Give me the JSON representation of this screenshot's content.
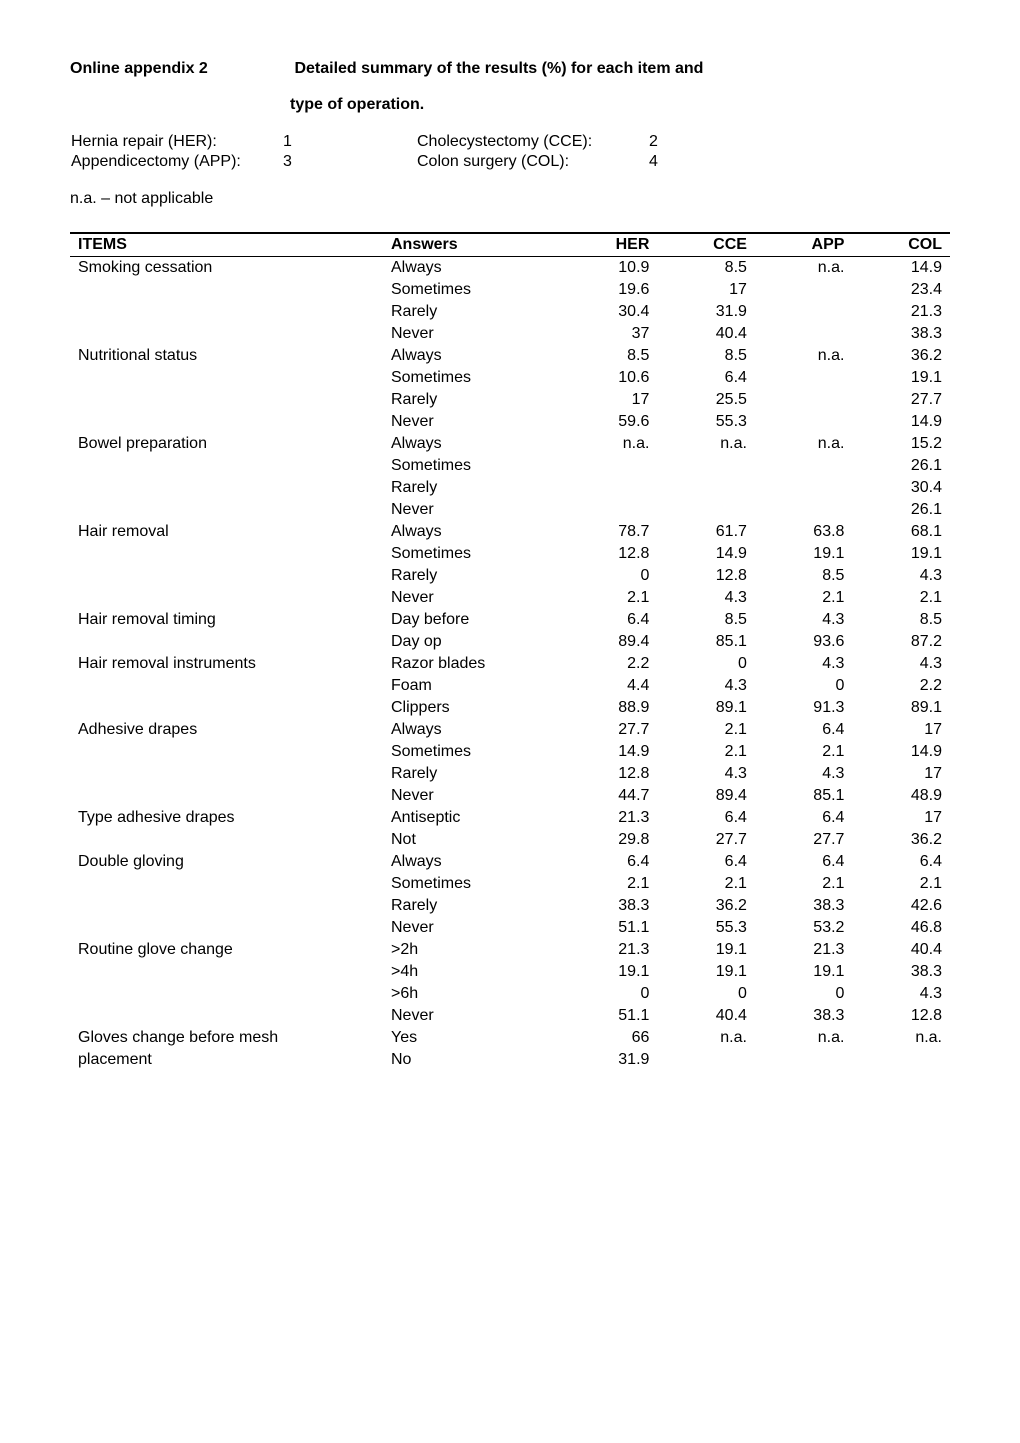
{
  "header": {
    "appendix_label": "Online appendix 2",
    "appendix_desc": "Detailed summary of the results (%) for each item and",
    "appendix_desc_line2": "type of operation."
  },
  "legend": {
    "rows": [
      {
        "label": "Hernia repair (HER):",
        "num": "1",
        "label2": "Cholecystectomy (CCE):",
        "num2": "2"
      },
      {
        "label": "Appendicectomy (APP):",
        "num": "3",
        "label2": "Colon surgery (COL):",
        "num2": "4"
      }
    ],
    "na": "n.a. – not applicable"
  },
  "table": {
    "columns": [
      "ITEMS",
      "Answers",
      "HER",
      "CCE",
      "APP",
      "COL"
    ],
    "col_align": [
      "left",
      "left",
      "right",
      "right",
      "right",
      "right"
    ],
    "header_bg": "#ffffff",
    "border_color": "#000000",
    "font_size": 16,
    "rows": [
      {
        "item": "Smoking cessation",
        "answers": [
          {
            "a": "Always",
            "v": [
              "10.9",
              "8.5",
              "n.a.",
              "14.9"
            ]
          },
          {
            "a": "Sometimes",
            "v": [
              "19.6",
              "17",
              "",
              "23.4"
            ]
          },
          {
            "a": "Rarely",
            "v": [
              "30.4",
              "31.9",
              "",
              "21.3"
            ]
          },
          {
            "a": "Never",
            "v": [
              "37",
              "40.4",
              "",
              "38.3"
            ]
          }
        ]
      },
      {
        "item": "Nutritional status",
        "answers": [
          {
            "a": "Always",
            "v": [
              "8.5",
              "8.5",
              "n.a.",
              "36.2"
            ]
          },
          {
            "a": "Sometimes",
            "v": [
              "10.6",
              "6.4",
              "",
              "19.1"
            ]
          },
          {
            "a": "Rarely",
            "v": [
              "17",
              "25.5",
              "",
              "27.7"
            ]
          },
          {
            "a": "Never",
            "v": [
              "59.6",
              "55.3",
              "",
              "14.9"
            ]
          }
        ]
      },
      {
        "item": "Bowel preparation",
        "answers": [
          {
            "a": "Always",
            "v": [
              "n.a.",
              "n.a.",
              "n.a.",
              "15.2"
            ]
          },
          {
            "a": "Sometimes",
            "v": [
              "",
              "",
              "",
              "26.1"
            ]
          },
          {
            "a": "Rarely",
            "v": [
              "",
              "",
              "",
              "30.4"
            ]
          },
          {
            "a": "Never",
            "v": [
              "",
              "",
              "",
              "26.1"
            ]
          }
        ]
      },
      {
        "item": "Hair removal",
        "answers": [
          {
            "a": "Always",
            "v": [
              "78.7",
              "61.7",
              "63.8",
              "68.1"
            ]
          },
          {
            "a": "Sometimes",
            "v": [
              "12.8",
              "14.9",
              "19.1",
              "19.1"
            ]
          },
          {
            "a": "Rarely",
            "v": [
              "0",
              "12.8",
              "8.5",
              "4.3"
            ]
          },
          {
            "a": "Never",
            "v": [
              "2.1",
              "4.3",
              "2.1",
              "2.1"
            ]
          }
        ]
      },
      {
        "item": "Hair removal timing",
        "answers": [
          {
            "a": "Day before",
            "v": [
              "6.4",
              "8.5",
              "4.3",
              "8.5"
            ]
          },
          {
            "a": "Day op",
            "v": [
              "89.4",
              "85.1",
              "93.6",
              "87.2"
            ]
          }
        ]
      },
      {
        "item": "Hair removal instruments",
        "answers": [
          {
            "a": "Razor blades",
            "v": [
              "2.2",
              "0",
              "4.3",
              "4.3"
            ]
          },
          {
            "a": "Foam",
            "v": [
              "4.4",
              "4.3",
              "0",
              "2.2"
            ]
          },
          {
            "a": "Clippers",
            "v": [
              "88.9",
              "89.1",
              "91.3",
              "89.1"
            ]
          }
        ]
      },
      {
        "item": "Adhesive drapes",
        "answers": [
          {
            "a": "Always",
            "v": [
              "27.7",
              "2.1",
              "6.4",
              "17"
            ]
          },
          {
            "a": "Sometimes",
            "v": [
              "14.9",
              "2.1",
              "2.1",
              "14.9"
            ]
          },
          {
            "a": "Rarely",
            "v": [
              "12.8",
              "4.3",
              "4.3",
              "17"
            ]
          },
          {
            "a": "Never",
            "v": [
              "44.7",
              "89.4",
              "85.1",
              "48.9"
            ]
          }
        ]
      },
      {
        "item": "Type adhesive drapes",
        "answers": [
          {
            "a": "Antiseptic",
            "v": [
              "21.3",
              "6.4",
              "6.4",
              "17"
            ]
          },
          {
            "a": "Not",
            "v": [
              "29.8",
              "27.7",
              "27.7",
              "36.2"
            ]
          }
        ]
      },
      {
        "item": "Double gloving",
        "answers": [
          {
            "a": "Always",
            "v": [
              "6.4",
              "6.4",
              "6.4",
              "6.4"
            ]
          },
          {
            "a": "Sometimes",
            "v": [
              "2.1",
              "2.1",
              "2.1",
              "2.1"
            ]
          },
          {
            "a": "Rarely",
            "v": [
              "38.3",
              "36.2",
              "38.3",
              "42.6"
            ]
          },
          {
            "a": "Never",
            "v": [
              "51.1",
              "55.3",
              "53.2",
              "46.8"
            ]
          }
        ]
      },
      {
        "item": "Routine glove change",
        "answers": [
          {
            "a": ">2h",
            "v": [
              "21.3",
              "19.1",
              "21.3",
              "40.4"
            ]
          },
          {
            "a": ">4h",
            "v": [
              "19.1",
              "19.1",
              "19.1",
              "38.3"
            ]
          },
          {
            "a": ">6h",
            "v": [
              "0",
              "0",
              "0",
              "4.3"
            ]
          },
          {
            "a": "Never",
            "v": [
              "51.1",
              "40.4",
              "38.3",
              "12.8"
            ]
          }
        ]
      },
      {
        "item": "Gloves change before mesh placement",
        "item_split": [
          "Gloves change before mesh",
          "placement"
        ],
        "answers": [
          {
            "a": "Yes",
            "v": [
              "66",
              "n.a.",
              "n.a.",
              "n.a."
            ]
          },
          {
            "a": "No",
            "v": [
              "31.9",
              "",
              "",
              ""
            ]
          }
        ]
      }
    ]
  }
}
